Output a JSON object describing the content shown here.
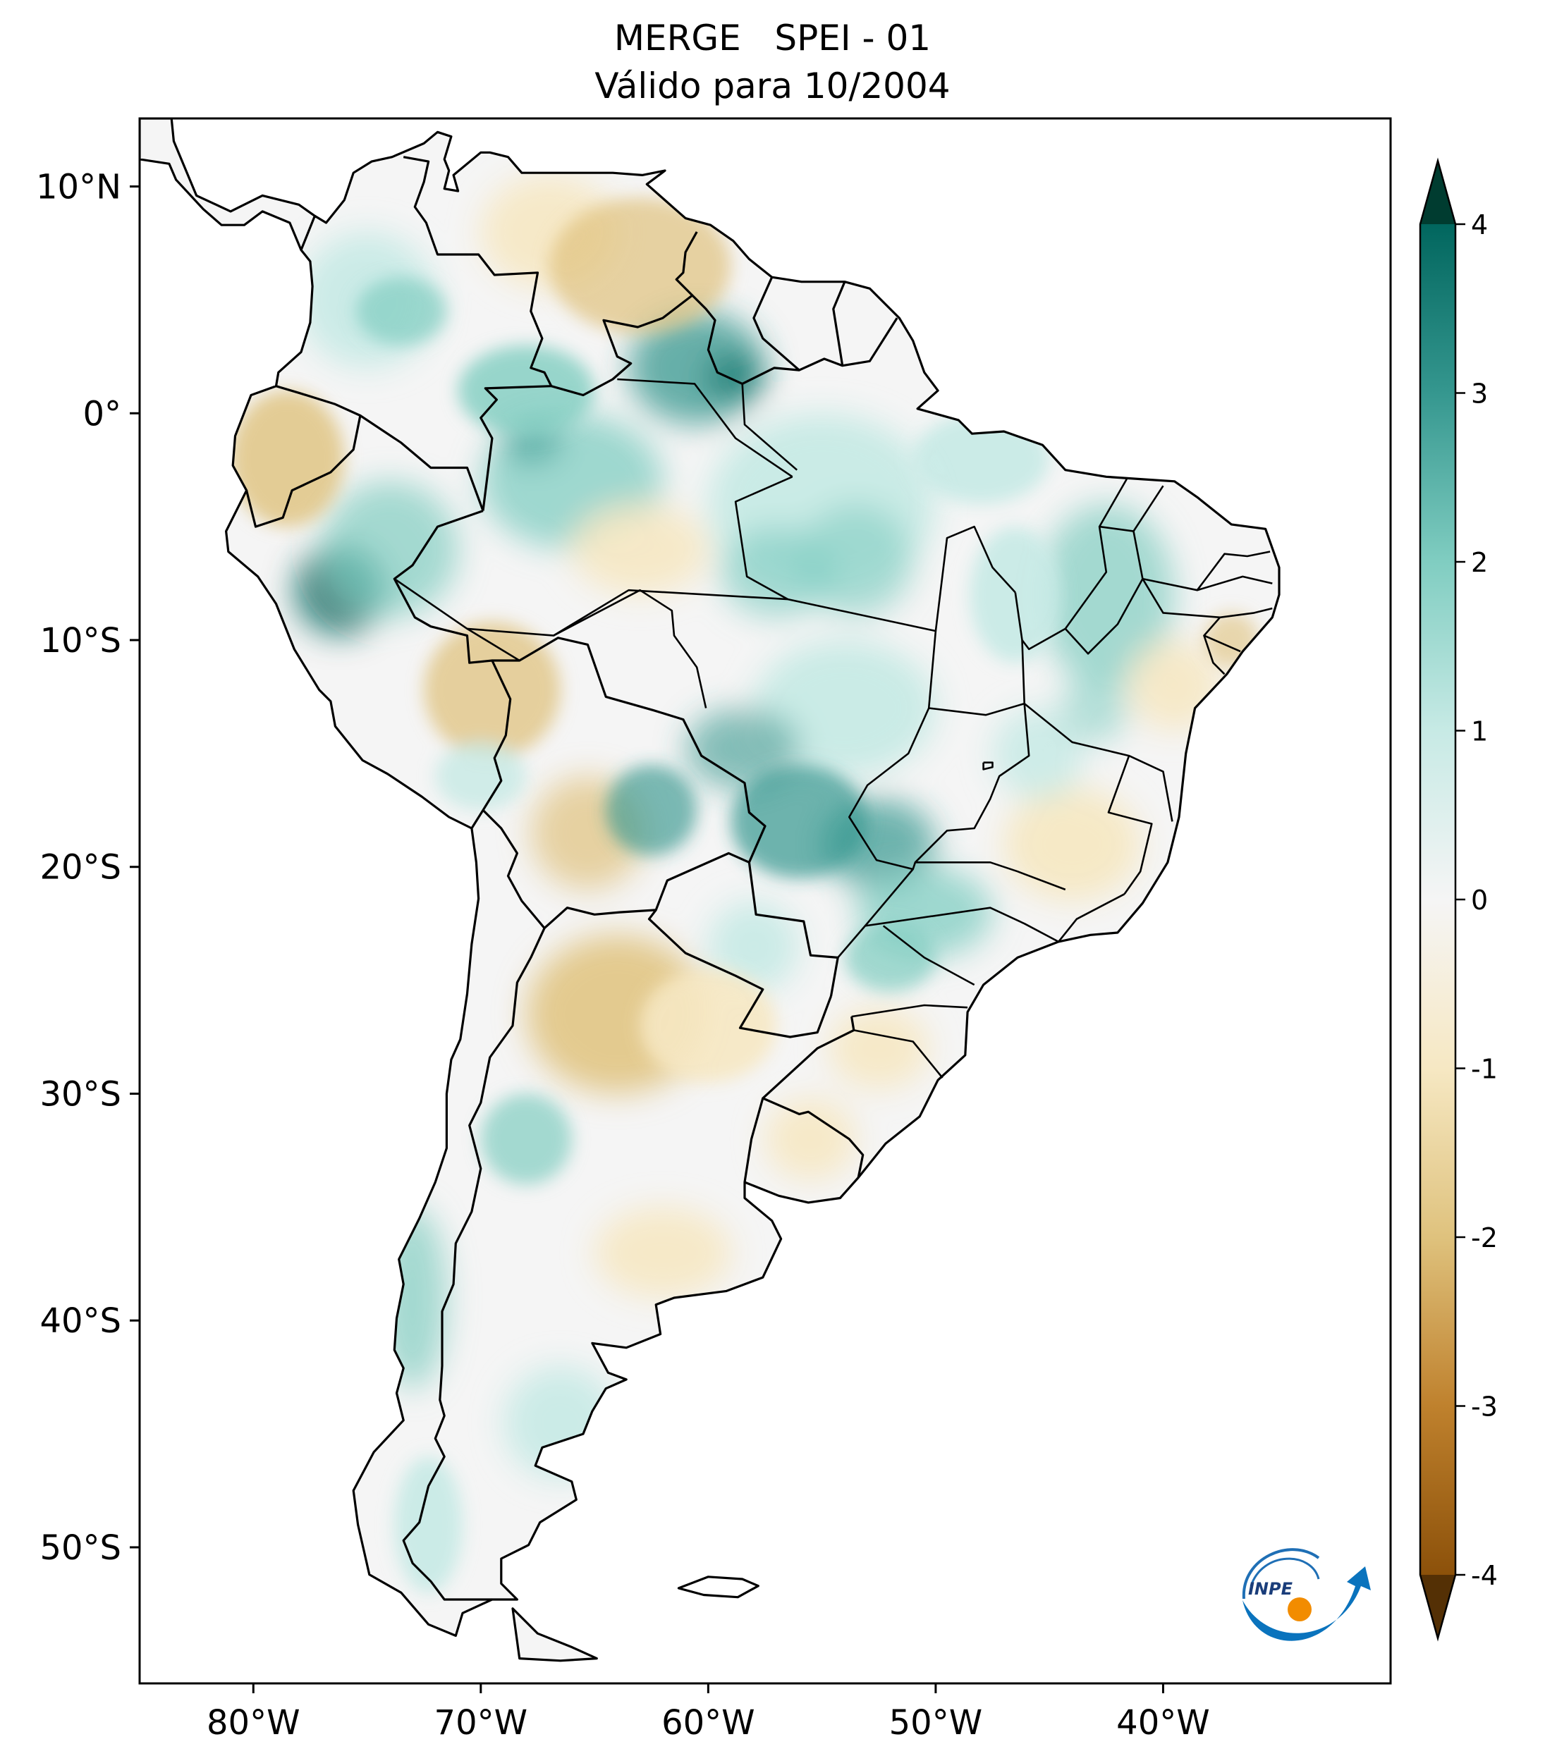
{
  "title": {
    "product": "MERGE",
    "index": "SPEI - 01",
    "valid": "Válido para 10/2004"
  },
  "map": {
    "region": "South America",
    "lon_labels": [
      "80°W",
      "70°W",
      "60°W",
      "50°W",
      "40°W"
    ],
    "lat_labels": [
      "10°N",
      "0°",
      "10°S",
      "20°S",
      "30°S",
      "40°S",
      "50°S"
    ],
    "lon_ticks": [
      -80,
      -70,
      -60,
      -50,
      -40
    ],
    "lat_ticks": [
      10,
      0,
      -10,
      -20,
      -30,
      -40,
      -50
    ],
    "extent_lon": [
      -85,
      -30
    ],
    "extent_lat": [
      -56,
      13
    ],
    "colormap": "BrBG",
    "anomaly_areas": [
      {
        "name": "Amazon / N Brazil",
        "sign": "wet"
      },
      {
        "name": "Mato Grosso do Sul / Paraná",
        "sign": "wet"
      },
      {
        "name": "Peru / W Amazon",
        "sign": "wet"
      },
      {
        "name": "Venezuela / Llanos",
        "sign": "dry"
      },
      {
        "name": "Ecuador / N Peru",
        "sign": "dry"
      },
      {
        "name": "S Peru / Bolivia",
        "sign": "dry"
      },
      {
        "name": "N Argentina (Chaco)",
        "sign": "dry"
      },
      {
        "name": "Pampas / Buenos Aires",
        "sign": "dry"
      },
      {
        "name": "Minas Gerais / Bahia",
        "sign": "dry"
      }
    ]
  },
  "colorbar": {
    "ticks": [
      4,
      3,
      2,
      1,
      0,
      -1,
      -2,
      -3,
      -4
    ],
    "tick_labels": [
      "4",
      "3",
      "2",
      "1",
      "0",
      "-1",
      "-2",
      "-3",
      "-4"
    ],
    "range": [
      -4,
      4
    ],
    "colors": {
      "max": "#003c30",
      "wet_strong": "#01665e",
      "wet": "#35978f",
      "wet_light": "#80cdc1",
      "wet_pale": "#c7eae5",
      "neutral": "#f5f5f5",
      "dry_pale": "#f6e8c3",
      "dry_light": "#dfc27d",
      "dry": "#bf812d",
      "dry_strong": "#8c510a",
      "min": "#543005"
    }
  },
  "logo": {
    "text": "INPE"
  }
}
